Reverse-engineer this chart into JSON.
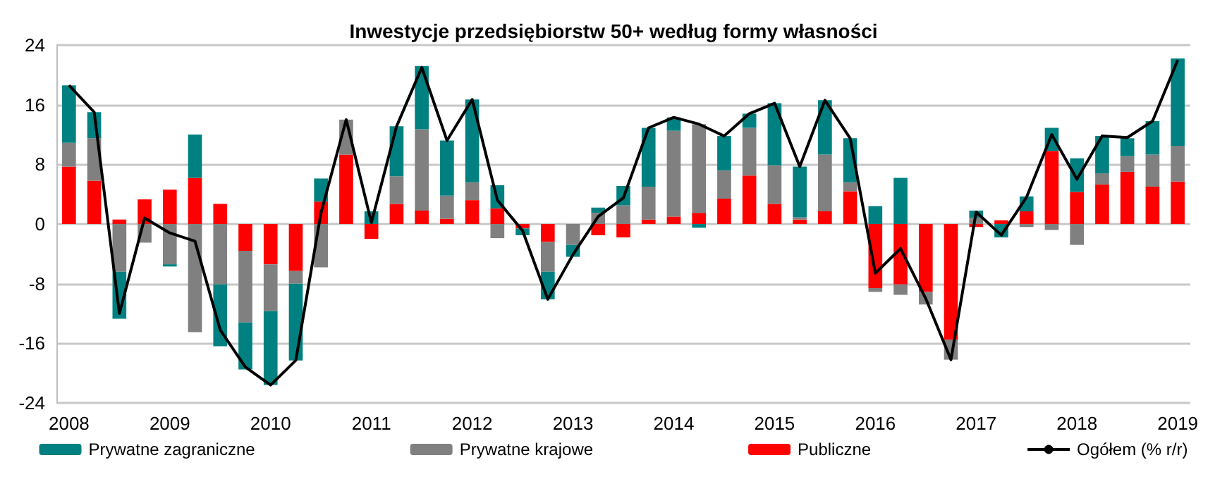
{
  "chart_data": {
    "type": "bar",
    "title": "Inwestycje przedsiębiorstw 50+ według formy własności",
    "categories": [
      "2008",
      null,
      null,
      null,
      "2009",
      null,
      null,
      null,
      "2010",
      null,
      null,
      null,
      "2011",
      null,
      null,
      null,
      "2012",
      null,
      null,
      null,
      "2013",
      null,
      null,
      null,
      "2014",
      null,
      null,
      null,
      "2015",
      null,
      null,
      null,
      "2016",
      null,
      null,
      null,
      "2017",
      null,
      null,
      null,
      "2018",
      null,
      null,
      null,
      "2019"
    ],
    "stacked": true,
    "series": [
      {
        "name": "Publiczne",
        "color": "#ff0000",
        "values": [
          7.7,
          5.8,
          0.6,
          3.3,
          4.6,
          6.2,
          2.7,
          -3.6,
          -5.4,
          -6.3,
          3.0,
          9.3,
          -2.0,
          2.7,
          1.8,
          0.7,
          3.2,
          2.1,
          -0.6,
          -2.4,
          null,
          -1.5,
          -1.8,
          0.6,
          1.0,
          1.5,
          3.4,
          6.5,
          2.7,
          0.6,
          1.7,
          4.4,
          -8.6,
          -8.1,
          -9.1,
          -15.5,
          -0.4,
          0.5,
          1.7,
          9.8,
          4.3,
          5.3,
          7.0,
          5.0,
          5.7
        ]
      },
      {
        "name": "Prywatne krajowe",
        "color": "#808080",
        "values": [
          3.2,
          5.7,
          -6.4,
          -2.5,
          -5.4,
          -14.5,
          -8.1,
          -9.6,
          -6.3,
          -1.7,
          -5.8,
          4.7,
          null,
          3.7,
          10.9,
          3.1,
          2.4,
          -1.9,
          null,
          -4.0,
          -2.8,
          1.5,
          2.5,
          4.4,
          11.5,
          11.9,
          3.8,
          6.4,
          5.2,
          0.3,
          7.6,
          1.2,
          -0.5,
          -1.4,
          -1.7,
          -2.7,
          0.8,
          null,
          -0.4,
          -0.8,
          -2.8,
          1.5,
          2.1,
          4.3,
          4.8
        ]
      },
      {
        "name": "Prywatne zagraniczne",
        "color": "#008080",
        "values": [
          7.7,
          3.5,
          -6.3,
          null,
          -0.3,
          5.8,
          -8.3,
          -6.3,
          -9.9,
          -10.3,
          3.1,
          null,
          1.7,
          6.7,
          8.5,
          7.4,
          11.1,
          3.1,
          -0.9,
          -3.7,
          -1.6,
          0.7,
          2.6,
          7.9,
          1.8,
          -0.5,
          4.6,
          1.9,
          8.3,
          6.8,
          7.3,
          5.9,
          2.4,
          6.2,
          null,
          null,
          1.0,
          -1.8,
          2.0,
          3.1,
          4.5,
          5.0,
          2.4,
          4.5,
          11.7
        ]
      },
      {
        "name": "Ogółem (% r/r)",
        "type": "line",
        "color": "#000000",
        "values": [
          18.6,
          15.0,
          -12.0,
          0.8,
          -1.2,
          -2.3,
          -14.2,
          -19.2,
          -21.6,
          -18.3,
          1.5,
          14.0,
          0.2,
          13.1,
          21.0,
          11.2,
          16.7,
          3.2,
          -0.9,
          -10.1,
          -4.1,
          1.0,
          3.5,
          12.9,
          14.3,
          13.4,
          11.8,
          14.8,
          16.2,
          7.7,
          16.6,
          11.5,
          -6.6,
          -3.3,
          -10.0,
          -18.2,
          1.6,
          -1.5,
          3.6,
          12.0,
          6.0,
          11.8,
          11.6,
          13.8,
          22.0
        ]
      }
    ],
    "ylim": [
      -24,
      24
    ],
    "yticks": [
      -24,
      -16,
      -8,
      0,
      8,
      16,
      24
    ],
    "grid": "y",
    "legend": "bottom",
    "marker": "none"
  }
}
